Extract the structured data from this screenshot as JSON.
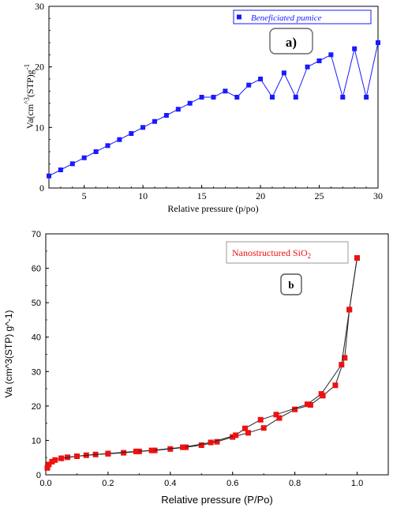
{
  "chart_data": [
    {
      "type": "line",
      "panel_label": "a)",
      "legend_text": "Beneficiated pumice",
      "xlabel": "Relative pressure (p/po)",
      "ylabel_main": "Va(cm",
      "ylabel_sup": "^3",
      "ylabel_tail": "(STP)g",
      "ylabel_exp": "-1",
      "xlim": [
        2,
        30
      ],
      "ylim": [
        0,
        30
      ],
      "x_ticks": [
        5,
        10,
        15,
        20,
        25,
        30
      ],
      "y_ticks": [
        0,
        10,
        20,
        30
      ],
      "color": "#1a1aff",
      "series": [
        {
          "x": [
            2,
            3,
            4,
            5,
            6,
            7,
            8,
            9,
            10,
            11,
            12,
            13,
            14,
            15,
            16,
            17,
            18,
            19,
            20,
            21,
            22,
            23,
            24,
            25,
            26,
            27,
            28,
            29,
            30
          ],
          "y": [
            2,
            3,
            4,
            5,
            6,
            7,
            8,
            9,
            10,
            11,
            12,
            13,
            14,
            15,
            15,
            16,
            15,
            17,
            18,
            15,
            19,
            15,
            20,
            21,
            22,
            15,
            23,
            15,
            24
          ]
        }
      ]
    },
    {
      "type": "line",
      "panel_label": "b",
      "legend_text": "Nanostructured SiO",
      "legend_sub": "2",
      "xlabel": "Relative pressure (P/Po)",
      "ylabel": "Va (cm^3(STP) g^-1)",
      "xlim": [
        0,
        1.1
      ],
      "ylim": [
        0,
        70
      ],
      "x_ticks": [
        0.0,
        0.2,
        0.4,
        0.6,
        0.8,
        1.0
      ],
      "x_tick_labels": [
        "0.0",
        "0.2",
        "0.4",
        "0.6",
        "0.8",
        "1.0"
      ],
      "y_ticks": [
        0,
        10,
        20,
        30,
        40,
        50,
        60,
        70
      ],
      "color": "#ee1111",
      "series": [
        {
          "x": [
            0.005,
            0.01,
            0.02,
            0.03,
            0.05,
            0.07,
            0.1,
            0.13,
            0.16,
            0.2,
            0.25,
            0.3,
            0.35,
            0.4,
            0.45,
            0.5,
            0.55,
            0.6,
            0.65,
            0.7,
            0.75,
            0.8,
            0.85,
            0.89,
            0.93,
            0.96,
            0.975,
            1.0
          ],
          "y": [
            2.0,
            3.0,
            3.8,
            4.3,
            4.8,
            5.1,
            5.4,
            5.7,
            5.9,
            6.1,
            6.4,
            6.8,
            7.1,
            7.5,
            8.0,
            8.6,
            9.6,
            11.0,
            12.2,
            13.6,
            16.5,
            19.0,
            20.3,
            23.0,
            26.0,
            34.0,
            48.0,
            63.0
          ]
        },
        {
          "x": [
            1.0,
            0.975,
            0.95,
            0.885,
            0.84,
            0.74,
            0.69,
            0.64,
            0.61,
            0.53,
            0.44,
            0.34,
            0.29,
            0.2,
            0.1,
            0.05
          ],
          "y": [
            63.0,
            48.0,
            32.0,
            23.5,
            20.5,
            17.5,
            16.0,
            13.5,
            11.5,
            9.4,
            8.0,
            7.1,
            6.8,
            6.2,
            5.4,
            4.8
          ]
        }
      ]
    }
  ]
}
